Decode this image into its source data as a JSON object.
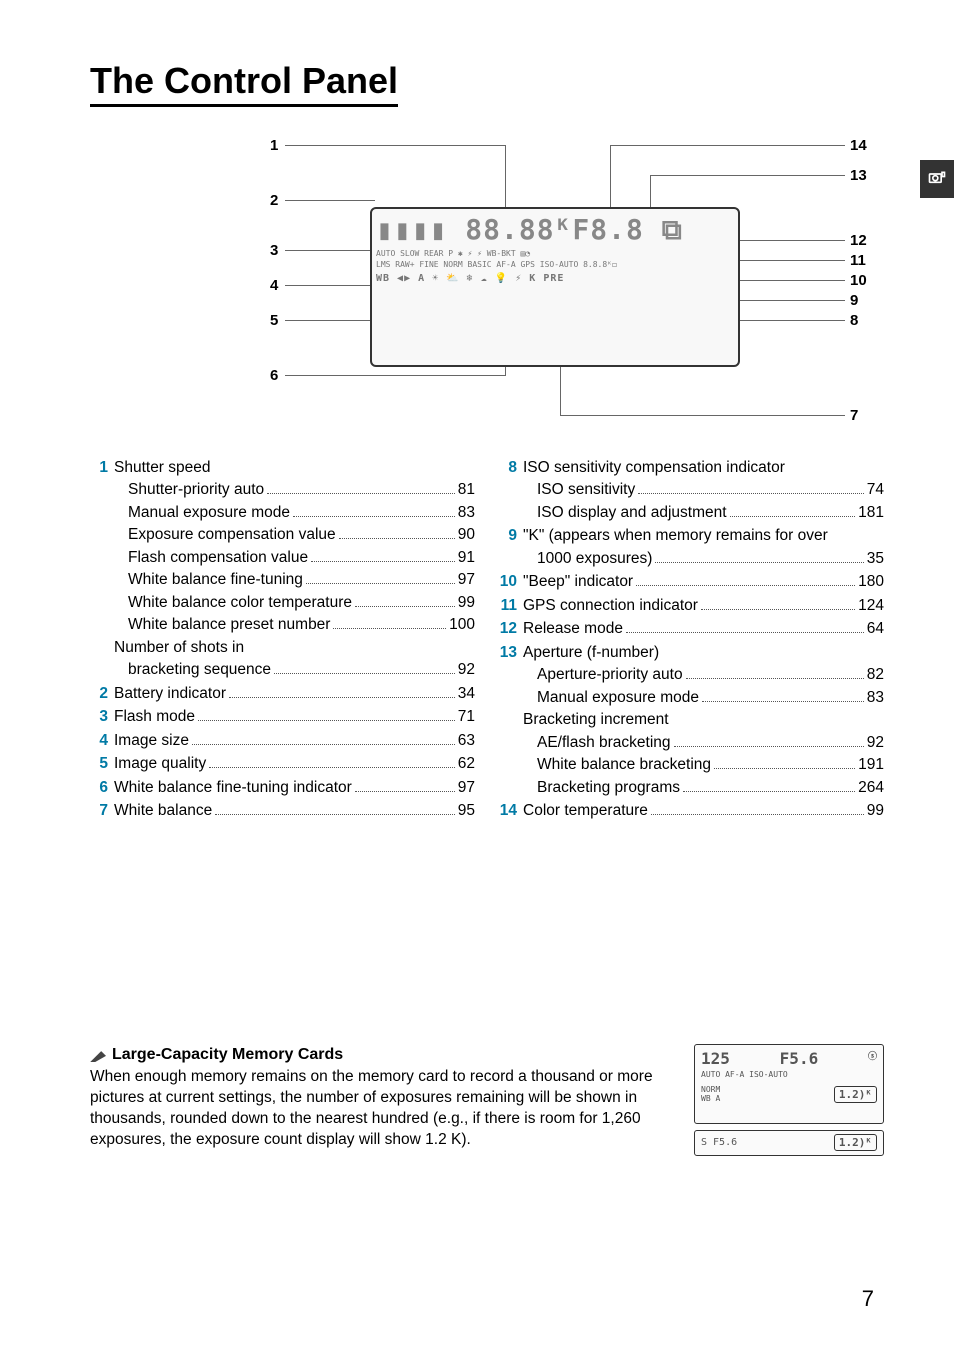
{
  "title": "The Control Panel",
  "page_number": "7",
  "diagram": {
    "lcd_top": "▮▮▮▮ 88.88ᴷF8.8 ⧉",
    "lcd_r2": "AUTO SLOW REAR  P ✱ ⚡ ⚡ WB-BKT ▤◔",
    "lcd_r3": "LMS RAW+ FINE NORM BASIC  AF-A GPS ISO-AUTO  8.8.8ᴷ◻",
    "lcd_r4": "WB ◀▶ A ☀ ⛅ ❄ ☁ 💡 ⚡ K PRE",
    "left_callouts": [
      "1",
      "2",
      "3",
      "4",
      "5",
      "6"
    ],
    "right_callouts": [
      "14",
      "13",
      "12",
      "11",
      "10",
      "9",
      "8",
      "7"
    ]
  },
  "left_column": [
    {
      "n": "1",
      "label": "Shutter speed",
      "sub": [
        {
          "label": "Shutter-priority auto",
          "page": "81"
        },
        {
          "label": "Manual exposure mode",
          "page": "83"
        }
      ],
      "more": [
        {
          "label": "Exposure compensation value",
          "page": "90"
        },
        {
          "label": "Flash compensation value",
          "page": "91"
        },
        {
          "label": "White balance fine-tuning",
          "page": "97"
        },
        {
          "label": "White balance color temperature",
          "page": "99"
        },
        {
          "label": "White balance preset number",
          "page": "100"
        },
        {
          "label": "Number of shots in bracketing sequence",
          "page": "92",
          "wrap": true
        }
      ]
    },
    {
      "n": "2",
      "label": "Battery indicator",
      "page": "34"
    },
    {
      "n": "3",
      "label": "Flash mode",
      "page": "71"
    },
    {
      "n": "4",
      "label": "Image size",
      "page": "63"
    },
    {
      "n": "5",
      "label": "Image quality",
      "page": "62"
    },
    {
      "n": "6",
      "label": "White balance fine-tuning indicator",
      "page": "97"
    },
    {
      "n": "7",
      "label": "White balance",
      "page": "95"
    }
  ],
  "right_column": [
    {
      "n": "8",
      "label": "ISO sensitivity compensation indicator",
      "sub": [
        {
          "label": "ISO sensitivity",
          "page": "74"
        },
        {
          "label": "ISO display and adjustment",
          "page": "181"
        }
      ]
    },
    {
      "n": "9",
      "label": "\"K\" (appears when memory remains for over 1000 exposures)",
      "page": "35",
      "wrap": true
    },
    {
      "n": "10",
      "label": "\"Beep\" indicator",
      "page": "180"
    },
    {
      "n": "11",
      "label": "GPS connection indicator",
      "page": "124"
    },
    {
      "n": "12",
      "label": "Release mode",
      "page": "64"
    },
    {
      "n": "13",
      "label": "Aperture (f-number)",
      "sub": [
        {
          "label": "Aperture-priority auto",
          "page": "82"
        },
        {
          "label": "Manual exposure mode",
          "page": "83"
        }
      ],
      "more_label": "Bracketing increment",
      "more": [
        {
          "label": "AE/flash bracketing",
          "page": "92"
        },
        {
          "label": "White balance bracketing",
          "page": "191"
        },
        {
          "label": "Bracketing programs",
          "page": "264"
        }
      ]
    },
    {
      "n": "14",
      "label": "Color temperature",
      "page": "99"
    }
  ],
  "note": {
    "heading": "Large-Capacity Memory Cards",
    "body": "When enough memory remains on the memory card to record a thousand or more pictures at current settings, the number of exposures remaining will be shown in thousands, rounded down to the nearest hundred (e.g., if there is room for 1,260 exposures, the exposure count display will show 1.2 K).",
    "thumb_top_left": "125",
    "thumb_top_right": "F5.6",
    "thumb_mid": "AUTO  AF-A   ISO-AUTO",
    "thumb_norm": "NORM",
    "thumb_wb": "WB   A",
    "thumb_k": "1.2)ᴷ",
    "thumb2_left": "S  F5.6",
    "thumb2_right": "1.2)ᴷ"
  }
}
